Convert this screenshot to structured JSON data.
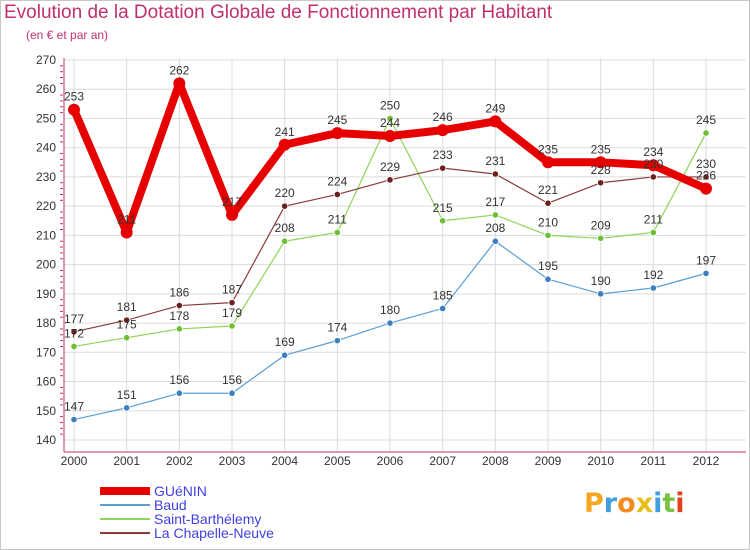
{
  "title": "Evolution de la Dotation Globale de Fonctionnement par Habitant",
  "subtitle": "(en € et par an)",
  "logo": {
    "text": "Proxiti",
    "letters": [
      {
        "char": "P",
        "color": "#f5a623"
      },
      {
        "char": "r",
        "color": "#3fa0e0"
      },
      {
        "char": "o",
        "color": "#f58a1f"
      },
      {
        "char": "x",
        "color": "#e6c01a"
      },
      {
        "char": "i",
        "color": "#3fa0e0"
      },
      {
        "char": "t",
        "color": "#7cc242"
      },
      {
        "char": "i",
        "color": "#e2401e"
      }
    ]
  },
  "chart_data": {
    "type": "line",
    "title": "Evolution de la Dotation Globale de Fonctionnement par Habitant",
    "ylabel": "(en € et par an)",
    "xlabel": "",
    "x": [
      "2000",
      "2001",
      "2002",
      "2003",
      "2004",
      "2005",
      "2006",
      "2007",
      "2008",
      "2009",
      "2010",
      "2011",
      "2012"
    ],
    "yticks": [
      "140",
      "150",
      "160",
      "170",
      "180",
      "190",
      "200",
      "210",
      "220",
      "230",
      "240",
      "250",
      "260",
      "270"
    ],
    "ylim": [
      140,
      270
    ],
    "grid": true,
    "legend_position": "bottom-left",
    "series": [
      {
        "name": "Baud",
        "color": "#5a9fd4",
        "marker": "#3b7fbf",
        "emphasis": false,
        "values": [
          147,
          151,
          156,
          156,
          169,
          174,
          180,
          185,
          208,
          195,
          190,
          192,
          197
        ]
      },
      {
        "name": "Saint-Barthélemy",
        "color": "#8fd45a",
        "marker": "#6cbf33",
        "emphasis": false,
        "values": [
          172,
          175,
          178,
          179,
          208,
          211,
          250,
          215,
          217,
          210,
          209,
          211,
          245
        ]
      },
      {
        "name": "La Chapelle-Neuve",
        "color": "#8b3a3a",
        "marker": "#6b1f1f",
        "emphasis": false,
        "values": [
          177,
          181,
          186,
          187,
          220,
          224,
          229,
          233,
          231,
          221,
          228,
          230,
          230
        ]
      },
      {
        "name": "GUéNIN",
        "color": "#e60000",
        "marker": "#e60000",
        "emphasis": true,
        "values": [
          253,
          211,
          262,
          217,
          241,
          245,
          244,
          246,
          249,
          235,
          235,
          234,
          226
        ]
      }
    ],
    "legend_order": [
      "GUéNIN",
      "Baud",
      "Saint-Barthélemy",
      "La Chapelle-Neuve"
    ],
    "legend_text_color": "#4040e0"
  }
}
